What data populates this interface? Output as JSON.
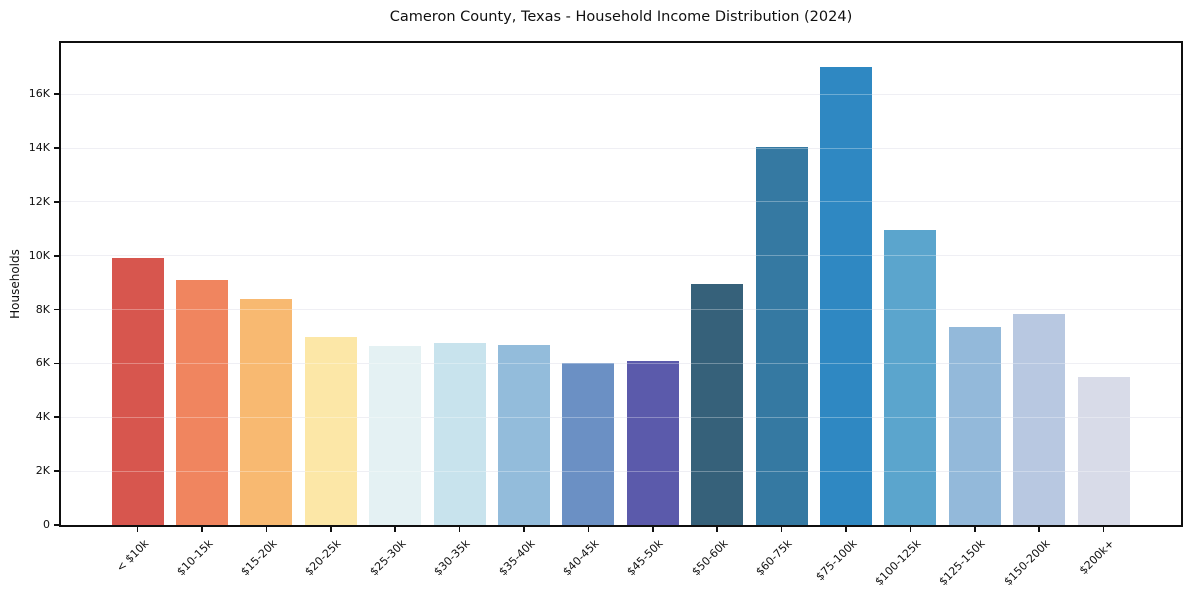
{
  "chart_data": {
    "type": "bar",
    "title": "Cameron County, Texas - Household Income Distribution (2024)",
    "xlabel": "",
    "ylabel": "Households",
    "categories": [
      "< $10k",
      "$10-15k",
      "$15-20k",
      "$20-25k",
      "$25-30k",
      "$30-35k",
      "$35-40k",
      "$40-45k",
      "$45-50k",
      "$50-60k",
      "$60-75k",
      "$75-100k",
      "$100-125k",
      "$125-150k",
      "$150-200k",
      "$200k+"
    ],
    "values": [
      9900,
      9100,
      8400,
      7000,
      6650,
      6750,
      6700,
      6000,
      6100,
      8950,
      14050,
      17000,
      10950,
      7350,
      7850,
      5500
    ],
    "bar_colors": [
      "#d7564e",
      "#f0855f",
      "#f8b971",
      "#fce7a7",
      "#e4f1f3",
      "#c8e3ed",
      "#93bcdb",
      "#6b90c4",
      "#5b5aab",
      "#36617a",
      "#3579a2",
      "#2f88c2",
      "#5ba5cd",
      "#93b9da",
      "#b8c8e1",
      "#d8dbe8"
    ],
    "ytick_values": [
      0,
      2000,
      4000,
      6000,
      8000,
      10000,
      12000,
      14000,
      16000
    ],
    "ytick_labels": [
      "0",
      "2K",
      "4K",
      "6K",
      "8K",
      "10K",
      "12K",
      "14K",
      "16K"
    ],
    "ylim": [
      0,
      17900
    ],
    "grid": "horizontal",
    "legend": "none",
    "grid_color": "#e9e9f0",
    "grid_over_bar_color": "rgba(255,255,255,0.30)",
    "spine_color": "#0f0f0f",
    "background_color": "#ffffff",
    "text_color": "#101010"
  }
}
